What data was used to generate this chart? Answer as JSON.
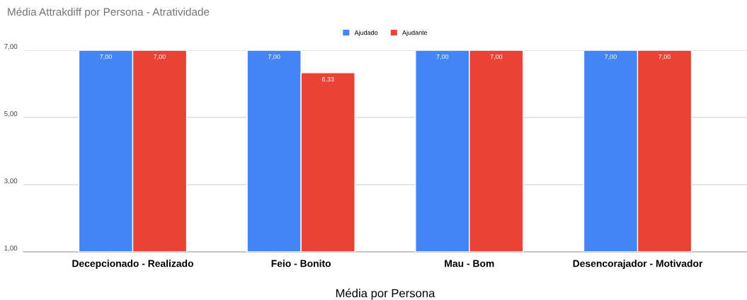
{
  "chart_data": {
    "type": "bar",
    "title": "Média Attrakdiff por Persona - Atratividade",
    "xlabel": "Média por Persona",
    "categories": [
      "Decepcionado - Realizado",
      "Feio - Bonito",
      "Mau - Bom",
      "Desencorajador - Motivador"
    ],
    "series": [
      {
        "name": "Ajudado",
        "color": "#4285f4",
        "values": [
          7,
          7,
          7,
          7
        ],
        "value_labels": [
          "7,00",
          "7,00",
          "7,00",
          "7,00"
        ]
      },
      {
        "name": "Ajudante",
        "color": "#ea4335",
        "values": [
          7,
          6.33,
          7,
          7
        ],
        "value_labels": [
          "7,00",
          "6,33",
          "7,00",
          "7,00"
        ]
      }
    ],
    "ylim": [
      1,
      7
    ],
    "yticks": [
      {
        "value": 1,
        "label": "1,00"
      },
      {
        "value": 3,
        "label": "3,00"
      },
      {
        "value": 5,
        "label": "5,00"
      },
      {
        "value": 7,
        "label": "7,00"
      }
    ],
    "grid": "y",
    "legend": "top"
  }
}
